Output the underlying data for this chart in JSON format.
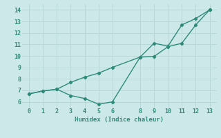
{
  "line1_x": [
    0,
    1,
    2,
    3,
    4,
    5,
    6,
    8,
    9,
    10,
    11,
    12,
    13
  ],
  "line1_y": [
    6.7,
    6.95,
    7.1,
    7.7,
    8.15,
    8.5,
    9.0,
    9.9,
    11.1,
    10.85,
    12.7,
    13.25,
    14.0
  ],
  "line2_x": [
    0,
    1,
    2,
    3,
    4,
    5,
    6,
    8,
    9,
    10,
    11,
    12,
    13
  ],
  "line2_y": [
    6.7,
    6.95,
    7.1,
    6.55,
    6.3,
    5.8,
    6.0,
    9.9,
    9.95,
    10.8,
    11.1,
    12.7,
    14.0
  ],
  "color": "#2e8b7a",
  "bg_color": "#cce8e8",
  "grid_color": "#b8d8d8",
  "xlabel": "Humidex (Indice chaleur)",
  "xlim": [
    -0.5,
    13.5
  ],
  "ylim": [
    5.5,
    14.5
  ],
  "yticks": [
    6,
    7,
    8,
    9,
    10,
    11,
    12,
    13,
    14
  ],
  "xticks": [
    0,
    1,
    2,
    3,
    4,
    5,
    6,
    8,
    9,
    10,
    11,
    12,
    13
  ],
  "marker": "D",
  "markersize": 2.2,
  "linewidth": 1.0,
  "tick_fontsize": 6.0,
  "xlabel_fontsize": 6.5
}
